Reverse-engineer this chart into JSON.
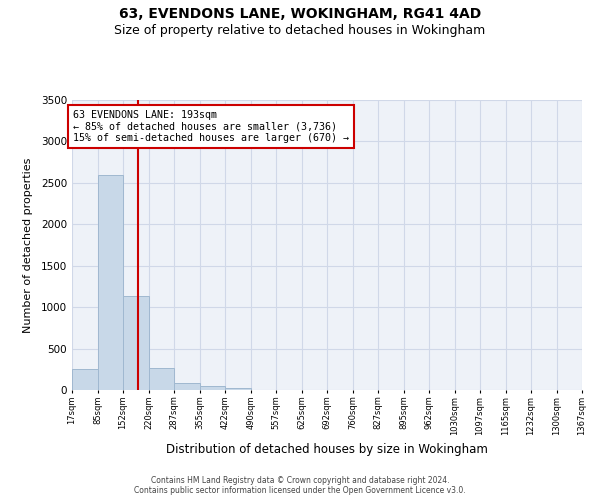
{
  "title": "63, EVENDONS LANE, WOKINGHAM, RG41 4AD",
  "subtitle": "Size of property relative to detached houses in Wokingham",
  "xlabel": "Distribution of detached houses by size in Wokingham",
  "ylabel": "Number of detached properties",
  "footer_line1": "Contains HM Land Registry data © Crown copyright and database right 2024.",
  "footer_line2": "Contains public sector information licensed under the Open Government Licence v3.0.",
  "bin_edges": [
    17,
    85,
    152,
    220,
    287,
    355,
    422,
    490,
    557,
    625,
    692,
    760,
    827,
    895,
    962,
    1030,
    1097,
    1165,
    1232,
    1300,
    1367
  ],
  "bin_labels": [
    "17sqm",
    "85sqm",
    "152sqm",
    "220sqm",
    "287sqm",
    "355sqm",
    "422sqm",
    "490sqm",
    "557sqm",
    "625sqm",
    "692sqm",
    "760sqm",
    "827sqm",
    "895sqm",
    "962sqm",
    "1030sqm",
    "1097sqm",
    "1165sqm",
    "1232sqm",
    "1300sqm",
    "1367sqm"
  ],
  "bar_heights": [
    250,
    2600,
    1130,
    270,
    90,
    50,
    30,
    0,
    0,
    0,
    0,
    0,
    0,
    0,
    0,
    0,
    0,
    0,
    0,
    0
  ],
  "bar_color": "#c8d8e8",
  "bar_edge_color": "#a0b8d0",
  "property_size": 193,
  "property_line_color": "#cc0000",
  "annotation_text_line1": "63 EVENDONS LANE: 193sqm",
  "annotation_text_line2": "← 85% of detached houses are smaller (3,736)",
  "annotation_text_line3": "15% of semi-detached houses are larger (670) →",
  "annotation_box_color": "#cc0000",
  "ylim": [
    0,
    3500
  ],
  "yticks": [
    0,
    500,
    1000,
    1500,
    2000,
    2500,
    3000,
    3500
  ],
  "grid_color": "#d0d8e8",
  "background_color": "#eef2f8",
  "title_fontsize": 10,
  "subtitle_fontsize": 9
}
